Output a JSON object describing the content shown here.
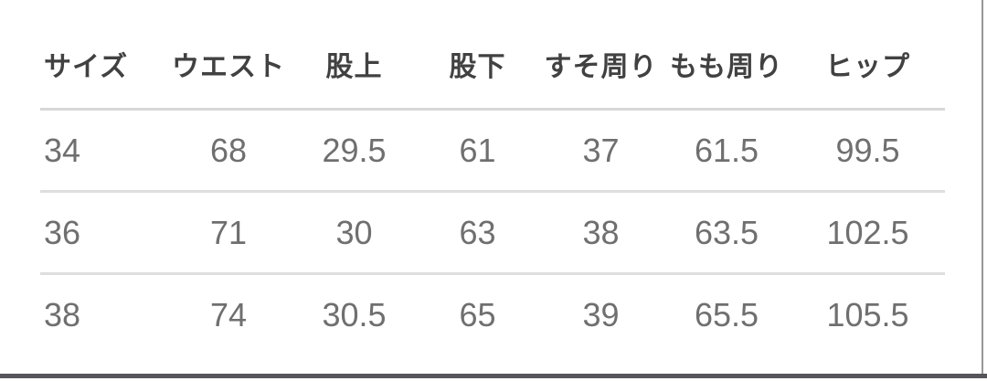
{
  "table": {
    "columns": [
      "サイズ",
      "ウエスト",
      "股上",
      "股下",
      "すそ周り",
      "もも周り",
      "ヒップ"
    ],
    "rows": [
      [
        "34",
        "68",
        "29.5",
        "61",
        "37",
        "61.5",
        "99.5"
      ],
      [
        "36",
        "71",
        "30",
        "63",
        "38",
        "63.5",
        "102.5"
      ],
      [
        "38",
        "74",
        "30.5",
        "65",
        "39",
        "65.5",
        "105.5"
      ]
    ]
  },
  "chart_data": {
    "type": "table",
    "title": "",
    "columns": [
      "サイズ",
      "ウエスト",
      "股上",
      "股下",
      "すそ周り",
      "もも周り",
      "ヒップ"
    ],
    "rows": [
      [
        34,
        68,
        29.5,
        61,
        37,
        61.5,
        99.5
      ],
      [
        36,
        71,
        30,
        63,
        38,
        63.5,
        102.5
      ],
      [
        38,
        74,
        30.5,
        65,
        39,
        65.5,
        105.5
      ]
    ]
  }
}
